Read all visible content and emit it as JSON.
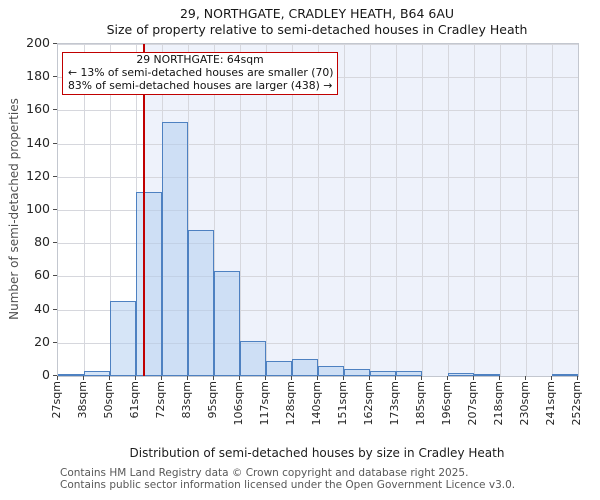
{
  "title": "29, NORTHGATE, CRADLEY HEATH, B64 6AU",
  "subtitle": "Size of property relative to semi-detached houses in Cradley Heath",
  "annotation": {
    "line1": "29 NORTHGATE: 64sqm",
    "line2": "← 13% of semi-detached houses are smaller (70)",
    "line3": "83% of semi-detached houses are larger (438) →"
  },
  "chart_data": {
    "type": "bar",
    "title": "29, NORTHGATE, CRADLEY HEATH, B64 6AU",
    "subtitle": "Size of property relative to semi-detached houses in Cradley Heath",
    "xlabel": "Distribution of semi-detached houses by size in Cradley Heath",
    "ylabel": "Number of semi-detached properties",
    "ylim": [
      0,
      200
    ],
    "yticks": [
      0,
      20,
      40,
      60,
      80,
      100,
      120,
      140,
      160,
      180,
      200
    ],
    "bin_edges_sqm": [
      27,
      38,
      50,
      61,
      72,
      83,
      95,
      106,
      117,
      128,
      140,
      151,
      162,
      173,
      185,
      196,
      207,
      218,
      230,
      241,
      252
    ],
    "x_tick_labels": [
      "27sqm",
      "38sqm",
      "50sqm",
      "61sqm",
      "72sqm",
      "83sqm",
      "95sqm",
      "106sqm",
      "117sqm",
      "128sqm",
      "140sqm",
      "151sqm",
      "162sqm",
      "173sqm",
      "185sqm",
      "196sqm",
      "207sqm",
      "218sqm",
      "230sqm",
      "241sqm",
      "252sqm"
    ],
    "values": [
      1,
      3,
      45,
      111,
      153,
      88,
      63,
      21,
      9,
      10,
      6,
      4,
      3,
      3,
      0,
      2,
      1,
      0,
      0,
      1
    ],
    "marker_value_sqm": 64,
    "grid": true,
    "legend": "none",
    "colors": {
      "bar_fill": "#d4e1f3",
      "bar_edge": "#4e81c1",
      "marker_line": "#c00000",
      "annotation_border": "#c00000",
      "shaded_region": "#eef2fb",
      "gridline": "#d6d7dd"
    }
  },
  "footer": [
    "Contains HM Land Registry data © Crown copyright and database right 2025.",
    "Contains public sector information licensed under the Open Government Licence v3.0."
  ]
}
